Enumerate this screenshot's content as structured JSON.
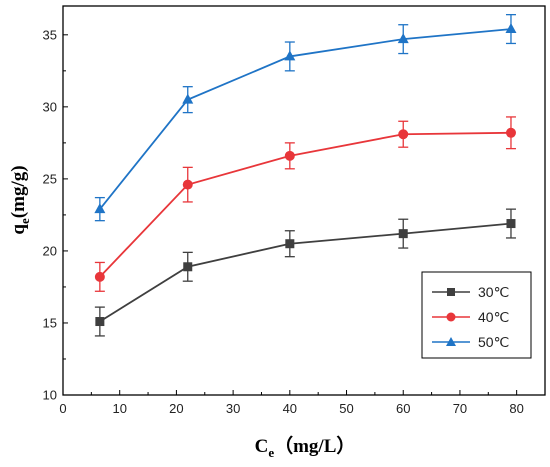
{
  "chart_data": {
    "type": "line",
    "xlabel_main": "C",
    "xlabel_sub": "e",
    "xlabel_unit": "（mg/L）",
    "ylabel_main": "q",
    "ylabel_sub": "e",
    "ylabel_unit": "(mg/g)",
    "xlim": [
      0,
      85
    ],
    "ylim": [
      10,
      37
    ],
    "x_ticks": [
      0,
      10,
      20,
      30,
      40,
      50,
      60,
      70,
      80
    ],
    "y_ticks": [
      10,
      15,
      20,
      25,
      30,
      35
    ],
    "legend_position": "bottom-right",
    "grid": false,
    "error_bars": true,
    "series": [
      {
        "name": "30℃",
        "color": "#3f3f3f",
        "marker": "square",
        "x": [
          6.5,
          22,
          40,
          60,
          79
        ],
        "y": [
          15.1,
          18.9,
          20.5,
          21.2,
          21.9
        ],
        "err": [
          1.0,
          1.0,
          0.9,
          1.0,
          1.0
        ]
      },
      {
        "name": "40℃",
        "color": "#e8363a",
        "marker": "circle",
        "x": [
          6.5,
          22,
          40,
          60,
          79
        ],
        "y": [
          18.2,
          24.6,
          26.6,
          28.1,
          28.2
        ],
        "err": [
          1.0,
          1.2,
          0.9,
          0.9,
          1.1
        ]
      },
      {
        "name": "50℃",
        "color": "#1f74c6",
        "marker": "triangle",
        "x": [
          6.5,
          22,
          40,
          60,
          79
        ],
        "y": [
          22.9,
          30.5,
          33.5,
          34.7,
          35.4
        ],
        "err": [
          0.8,
          0.9,
          1.0,
          1.0,
          1.0
        ]
      }
    ]
  }
}
